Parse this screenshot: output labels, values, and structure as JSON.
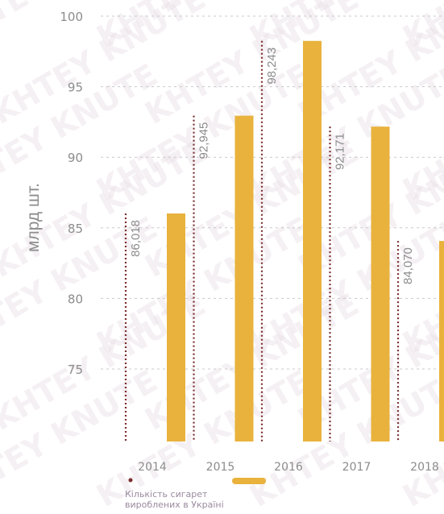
{
  "chart_data": {
    "type": "bar",
    "ylabel": "млрд шт.",
    "ylim": [
      70,
      100
    ],
    "yticks": [
      100,
      95,
      90,
      85,
      80,
      75
    ],
    "grid": true,
    "categories": [
      "2014",
      "2015",
      "2016",
      "2017",
      "2018"
    ],
    "values": [
      86.018,
      92.945,
      98.243,
      92.171,
      84.07
    ],
    "value_labels": [
      "86,018",
      "92,945",
      "98,243",
      "92,171",
      "84,070"
    ],
    "legend": {
      "placement": "bottom-left",
      "line1": "Кількість сигарет",
      "line2": "вироблених в Україні"
    },
    "colors": {
      "bar": "#e8b23c",
      "dotted_line": "#7a2e2e",
      "grid": "#c9c9c9",
      "text": "#8c8c8c"
    }
  },
  "watermark": "KHTEY KNUTE"
}
